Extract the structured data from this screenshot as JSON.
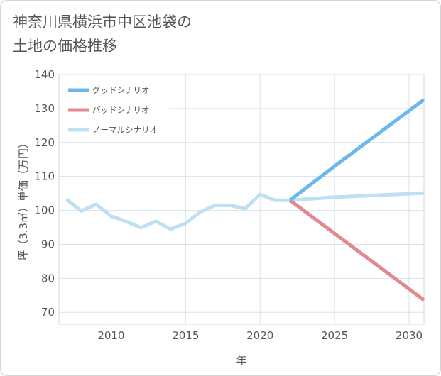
{
  "page_title_line1": "神奈川県横浜市中区池袋の",
  "page_title_line2": "土地の価格推移",
  "chart_data": {
    "type": "line",
    "title": "神奈川県横浜市中区池袋の土地の価格推移",
    "xlabel": "年",
    "ylabel": "坪（3.3㎡）単価（万円）",
    "xlim": [
      2006.5,
      2031
    ],
    "ylim": [
      66.5,
      140
    ],
    "x_ticks": [
      2010,
      2015,
      2020,
      2025,
      2030
    ],
    "y_ticks": [
      70,
      80,
      90,
      100,
      110,
      120,
      130,
      140
    ],
    "grid": true,
    "legend_position": "top-left",
    "series": [
      {
        "name": "グッドシナリオ",
        "color": "#6cb8ec",
        "x": [
          2022,
          2025,
          2031
        ],
        "y": [
          103.0,
          113.0,
          132.6
        ]
      },
      {
        "name": "バッドシナリオ",
        "color": "#e08a90",
        "x": [
          2022,
          2031
        ],
        "y": [
          103.0,
          73.6
        ]
      },
      {
        "name": "ノーマルシナリオ",
        "color": "#bfe0f2",
        "x": [
          2007,
          2008,
          2009,
          2010,
          2011,
          2012,
          2013,
          2014,
          2015,
          2016,
          2017,
          2018,
          2019,
          2020,
          2021,
          2022,
          2025,
          2031
        ],
        "y": [
          103.3,
          99.8,
          101.8,
          98.3,
          96.8,
          94.9,
          96.8,
          94.5,
          96.2,
          99.6,
          101.5,
          101.5,
          100.5,
          104.7,
          103.0,
          103.0,
          103.9,
          105.1
        ]
      }
    ]
  }
}
